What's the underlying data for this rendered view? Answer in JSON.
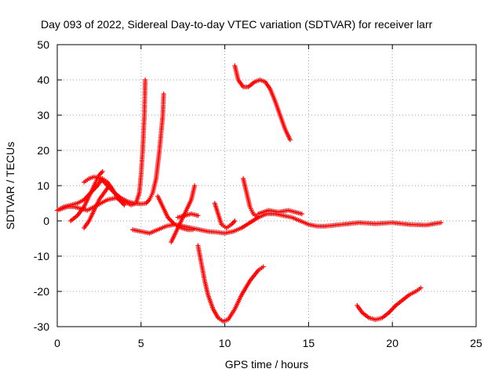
{
  "chart_data": {
    "type": "scatter",
    "title": "Day 093 of 2022, Sidereal Day-to-day VTEC variation (SDTVAR) for receiver larr",
    "xlabel": "GPS time / hours",
    "ylabel": "SDTVAR / TECUs",
    "xlim": [
      0,
      25
    ],
    "ylim": [
      -30,
      50
    ],
    "xticks": [
      "0",
      "5",
      "10",
      "15",
      "20",
      "25"
    ],
    "yticks": [
      "-30",
      "-20",
      "-10",
      "0",
      "10",
      "20",
      "30",
      "40",
      "50"
    ],
    "grid": true,
    "marker": "plus",
    "color": "#ff0000",
    "series": [
      {
        "x": [
          0.0,
          0.3,
          0.6,
          1.0,
          1.4,
          1.8,
          2.2,
          2.6,
          3.0,
          3.5,
          4.0,
          4.4,
          4.7,
          4.9,
          5.0,
          5.1,
          5.2,
          5.25
        ],
        "y": [
          3,
          3.5,
          4,
          4,
          3.5,
          3,
          4,
          5,
          6,
          6.5,
          5.5,
          4.5,
          5,
          8,
          13,
          20,
          30,
          40
        ]
      },
      {
        "x": [
          0.0,
          0.4,
          0.8,
          1.2,
          1.6,
          2.0,
          2.4,
          2.7,
          3.0,
          3.3,
          3.6,
          4.0
        ],
        "y": [
          3,
          4,
          4.5,
          5,
          6,
          8,
          10,
          12,
          11,
          9,
          6.5,
          4.5
        ]
      },
      {
        "x": [
          0.8,
          1.2,
          1.6,
          2.0,
          2.3,
          2.5,
          2.7
        ],
        "y": [
          0,
          1.5,
          4,
          8,
          11,
          13,
          14
        ]
      },
      {
        "x": [
          1.6,
          1.9,
          2.2,
          2.6,
          3.0,
          3.4,
          3.8,
          4.2,
          4.6,
          5.0,
          5.3,
          5.5,
          5.7,
          5.9,
          6.0,
          6.1,
          6.2,
          6.3,
          6.35
        ],
        "y": [
          11,
          12,
          12.5,
          12,
          10,
          8,
          6.5,
          5.5,
          5,
          4.8,
          5,
          6,
          8,
          12,
          16,
          20,
          25,
          30,
          36
        ]
      },
      {
        "x": [
          1.6,
          1.9,
          2.2,
          2.5,
          2.8,
          3.1
        ],
        "y": [
          -2,
          0,
          3,
          6,
          8,
          10
        ]
      },
      {
        "x": [
          4.5,
          5.0,
          5.5,
          6.0,
          6.5,
          7.0,
          7.5,
          8.0,
          8.5,
          9.0,
          9.5,
          10.0,
          10.5,
          11.0,
          11.5,
          12.0,
          12.5,
          13.0,
          13.5,
          14.0,
          14.5,
          15.0,
          15.5,
          16.0,
          17.0,
          18.0,
          19.0,
          20.0,
          21.0,
          22.0,
          22.9
        ],
        "y": [
          -2.5,
          -3,
          -3.5,
          -2.5,
          -1.5,
          -1,
          -1.5,
          -2,
          -2.5,
          -3,
          -3.2,
          -3.5,
          -3,
          -2,
          -0.5,
          1,
          2,
          2,
          1.5,
          1,
          0,
          -1,
          -1.5,
          -1.5,
          -1,
          -0.5,
          -0.8,
          -0.5,
          -1,
          -1.2,
          -0.5
        ]
      },
      {
        "x": [
          6.0,
          6.3,
          6.6,
          7.0,
          7.4,
          7.8,
          8.1
        ],
        "y": [
          7,
          4,
          1,
          -1,
          -2,
          -2.5,
          -2.5
        ]
      },
      {
        "x": [
          6.8,
          7.1,
          7.4,
          7.7,
          8.0,
          8.2
        ],
        "y": [
          -6,
          -3,
          0,
          3,
          6,
          10
        ]
      },
      {
        "x": [
          7.2,
          7.6,
          8.0,
          8.4
        ],
        "y": [
          1,
          1.5,
          2,
          1.5
        ]
      },
      {
        "x": [
          8.4,
          8.6,
          8.8,
          9.0,
          9.3,
          9.6,
          9.9,
          10.2,
          10.6,
          11.0,
          11.5,
          12.0,
          12.3
        ],
        "y": [
          -7,
          -12,
          -17,
          -21,
          -25,
          -27.5,
          -28.5,
          -28,
          -25,
          -21,
          -17,
          -14,
          -13
        ]
      },
      {
        "x": [
          9.4,
          9.6,
          9.8,
          10.1,
          10.4,
          10.6
        ],
        "y": [
          5,
          2,
          -1,
          -2,
          -1,
          0
        ]
      },
      {
        "x": [
          10.6,
          10.8,
          11.1,
          11.4,
          11.8,
          12.1,
          12.4,
          12.7,
          13.0,
          13.3,
          13.6,
          13.9
        ],
        "y": [
          44,
          40,
          38,
          38,
          39.5,
          40,
          39.5,
          37.5,
          34,
          30,
          26,
          23
        ]
      },
      {
        "x": [
          11.1,
          11.3,
          11.5,
          11.7,
          12.0
        ],
        "y": [
          12,
          8,
          4,
          2,
          1
        ]
      },
      {
        "x": [
          12.0,
          12.6,
          13.2,
          13.8,
          14.2,
          14.6
        ],
        "y": [
          2,
          3,
          2.5,
          3,
          2.5,
          2
        ]
      },
      {
        "x": [
          17.9,
          18.2,
          18.6,
          19.0,
          19.4,
          19.8,
          20.2,
          20.6,
          21.0,
          21.4,
          21.7
        ],
        "y": [
          -24,
          -26,
          -27.5,
          -28,
          -27.5,
          -26,
          -24,
          -22.5,
          -21,
          -20,
          -19
        ]
      }
    ]
  }
}
